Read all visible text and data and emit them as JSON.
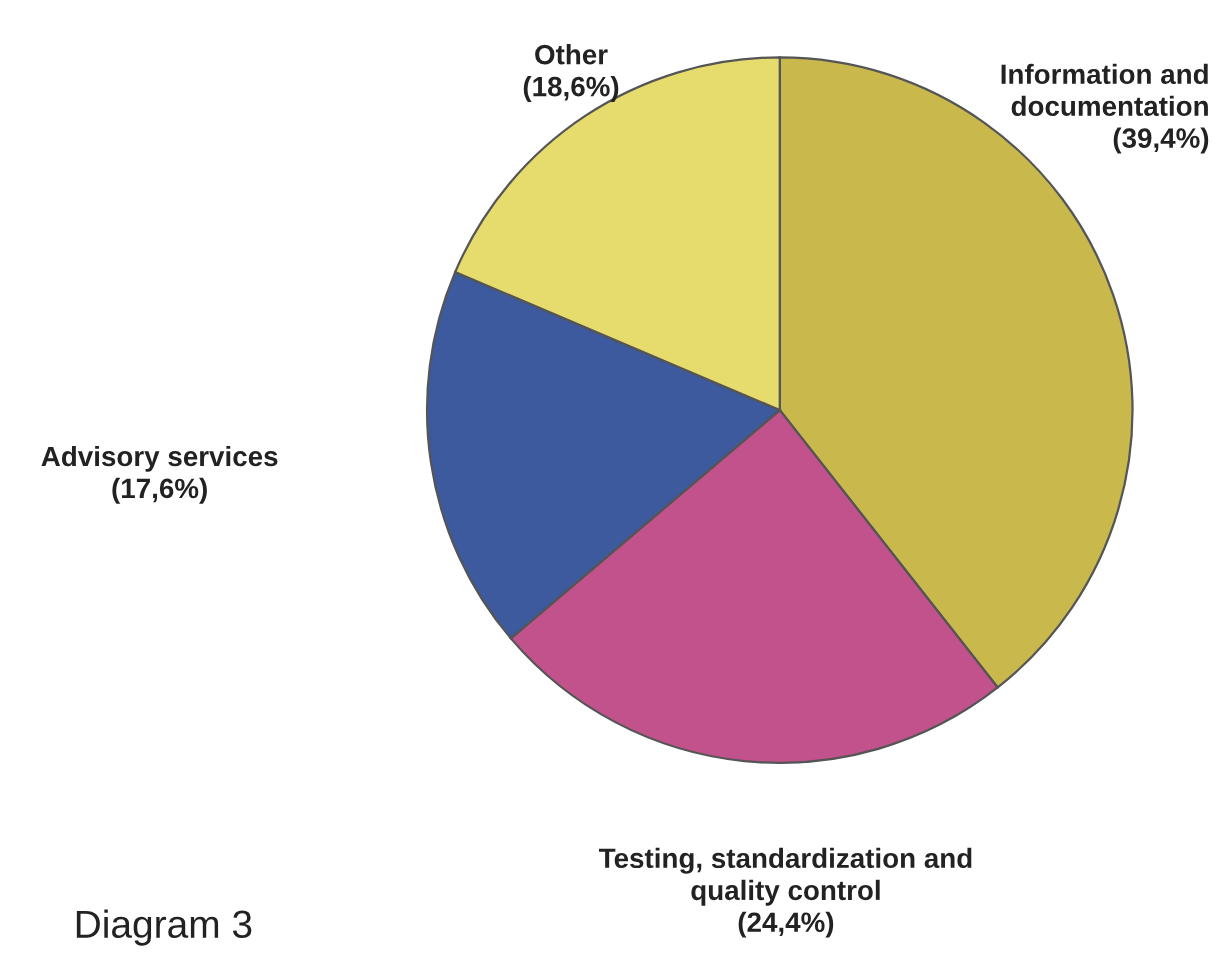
{
  "chart_data": {
    "type": "pie",
    "categories": [
      "Information and\ndocumentation",
      "Testing, standardization and\nquality control",
      "Advisory services",
      "Other"
    ],
    "values": [
      39.4,
      24.4,
      17.6,
      18.6
    ],
    "colors": [
      "#c9b94c",
      "#c2528c",
      "#3d5a9e",
      "#e6dc6e"
    ],
    "value_labels": [
      "(39,4%)",
      "(24,4%)",
      "(17,6%)",
      "(18,6%)"
    ],
    "annotations": [
      "Diagram 3"
    ]
  }
}
